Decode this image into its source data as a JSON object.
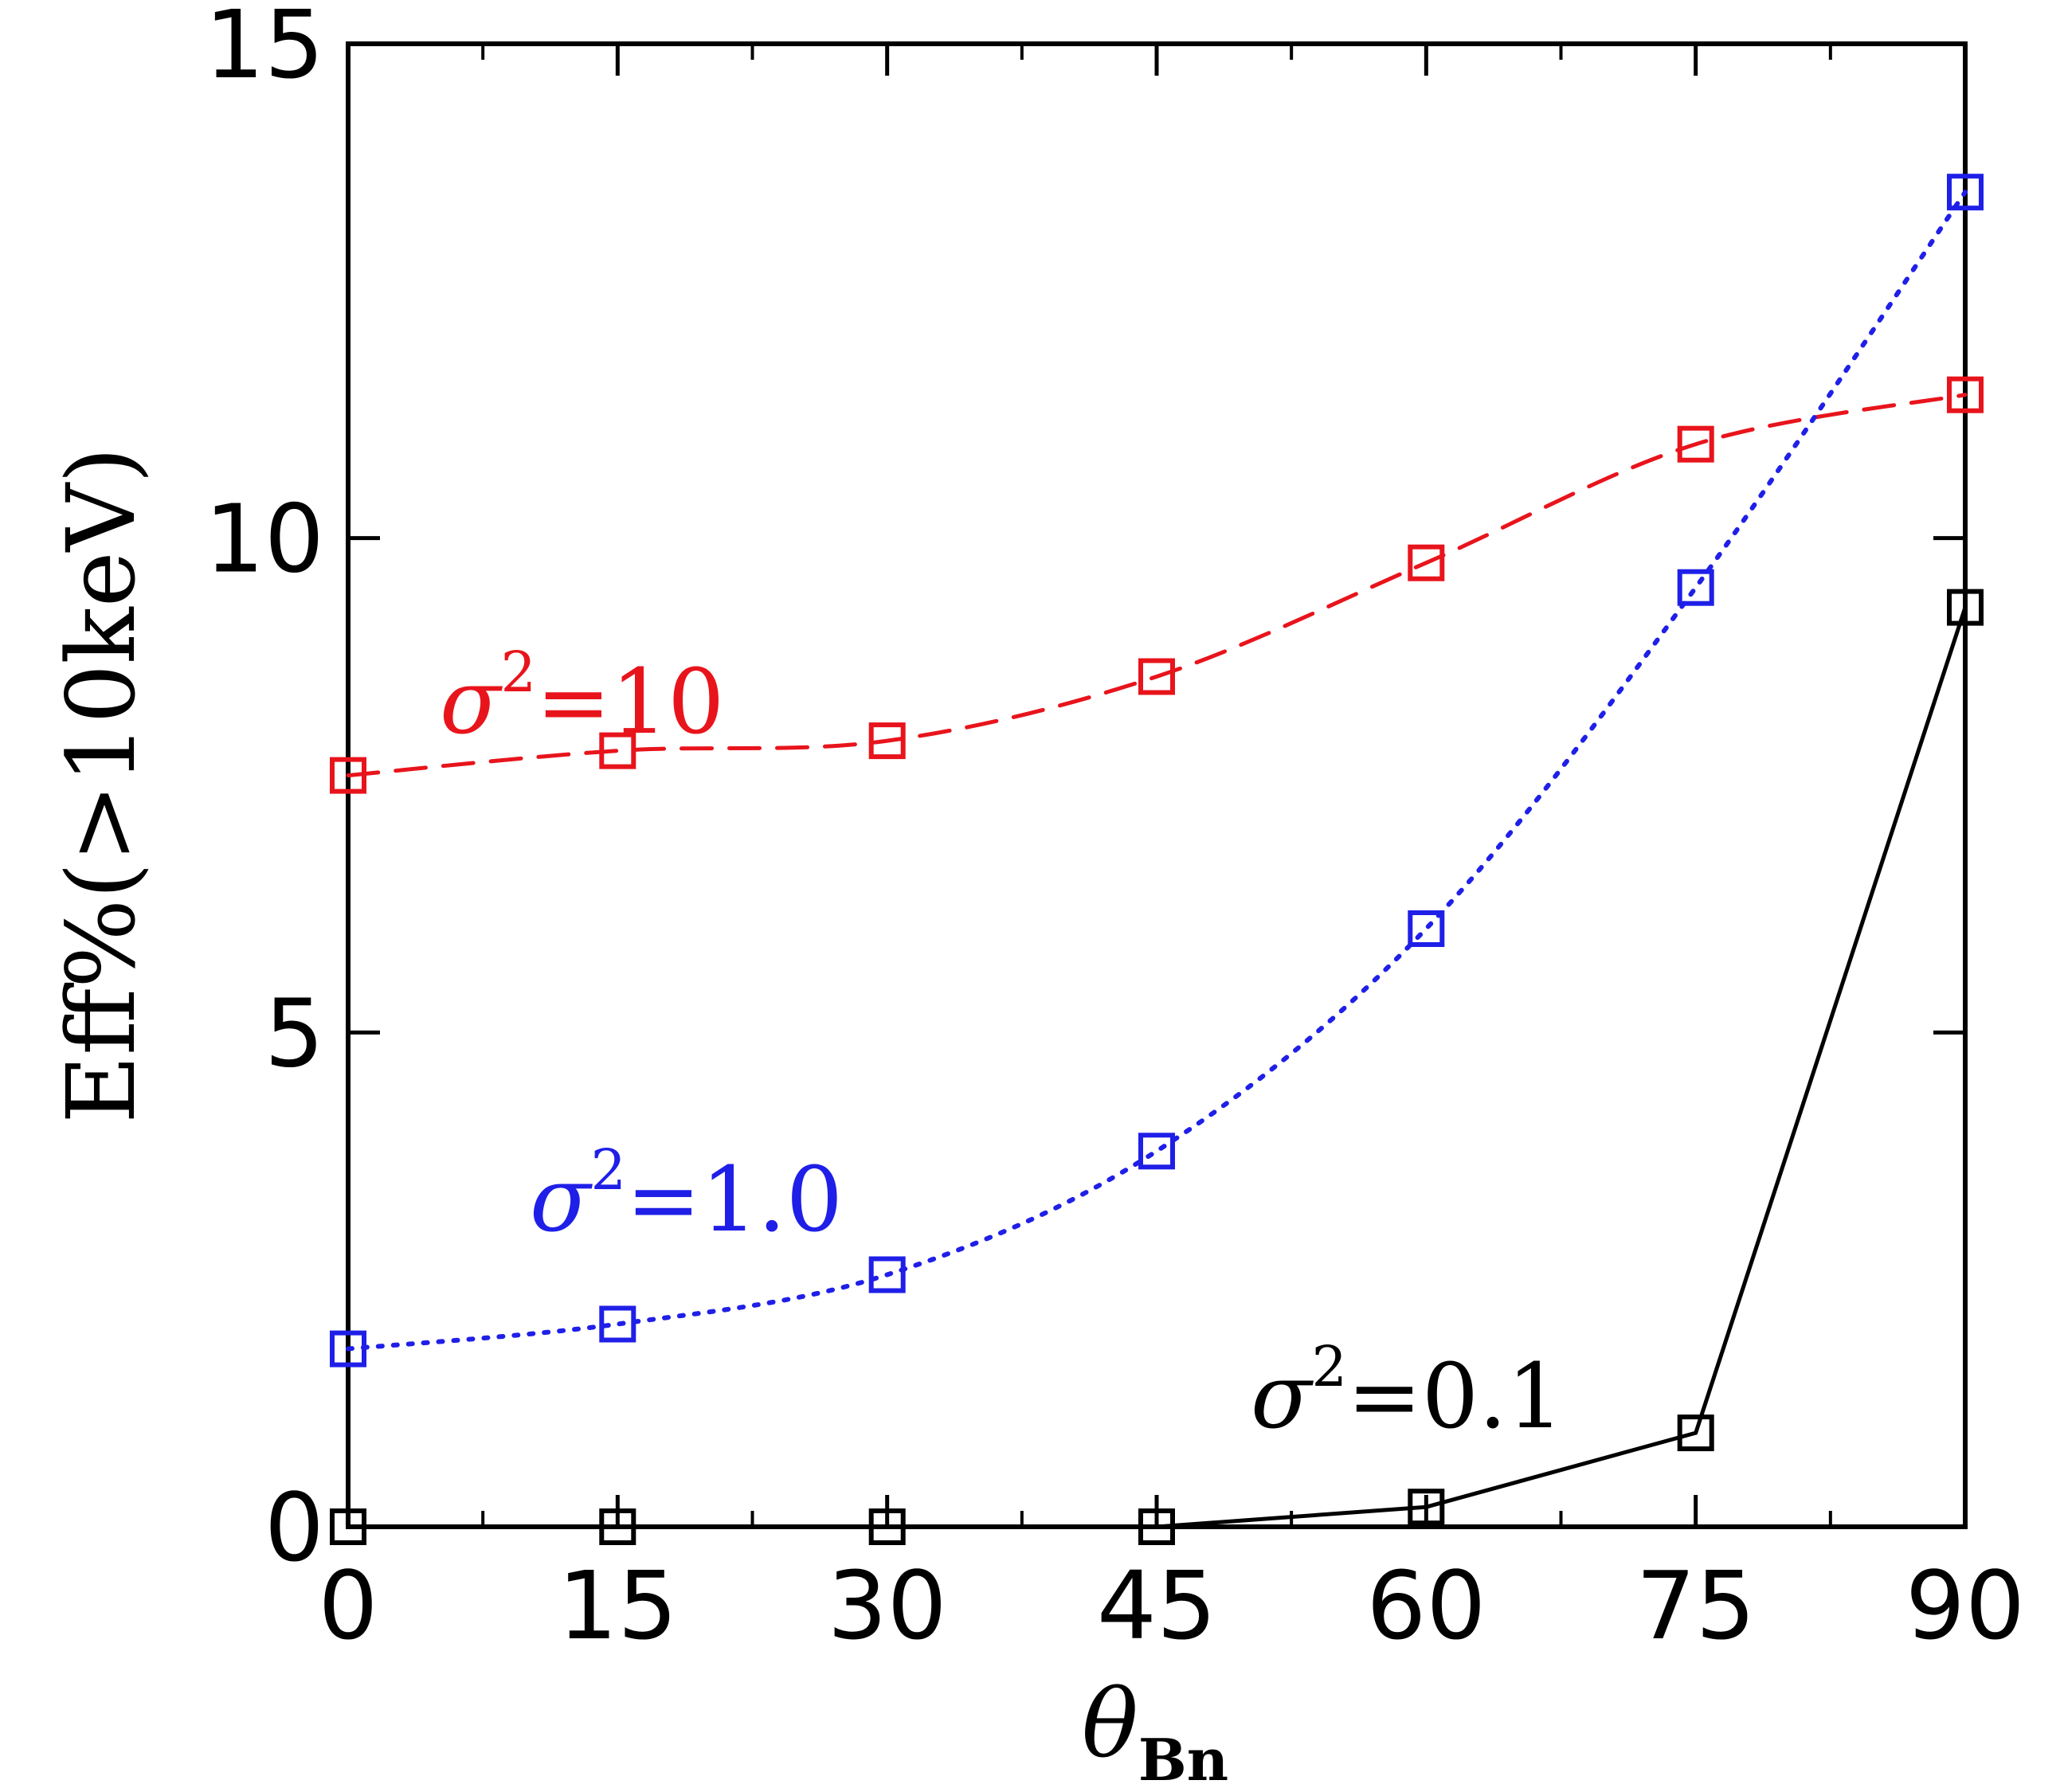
{
  "chart_data": {
    "type": "line",
    "xlabel": "θ",
    "xlabel_sub": "Bn",
    "ylabel": "Eff%(>10keV)",
    "xlim": [
      0,
      90
    ],
    "ylim": [
      0,
      15
    ],
    "xticks": [
      0,
      15,
      30,
      45,
      60,
      75,
      90
    ],
    "yticks": [
      0,
      5,
      10,
      15
    ],
    "grid": false,
    "marker": "square",
    "series": [
      {
        "key": "s10",
        "label_sigma": "σ",
        "label_sup": "2",
        "label_value": "=10",
        "color": "#e8141c",
        "line_style": "dashed",
        "x": [
          0,
          15,
          30,
          45,
          60,
          75,
          90
        ],
        "y": [
          7.6,
          7.85,
          7.95,
          8.6,
          9.75,
          10.95,
          11.45
        ]
      },
      {
        "key": "s1",
        "label_sigma": "σ",
        "label_sup": "2",
        "label_value": "=1.0",
        "color": "#1f1fe8",
        "line_style": "dotted",
        "x": [
          0,
          15,
          30,
          45,
          60,
          75,
          90
        ],
        "y": [
          1.8,
          2.05,
          2.55,
          3.8,
          6.05,
          9.5,
          13.5
        ]
      },
      {
        "key": "s01",
        "label_sigma": "σ",
        "label_sup": "2",
        "label_value": "=0.1",
        "color": "#000000",
        "line_style": "solid",
        "x": [
          0,
          15,
          30,
          45,
          60,
          75,
          90
        ],
        "y": [
          0.0,
          0.0,
          0.0,
          0.0,
          0.2,
          0.95,
          9.3
        ]
      }
    ]
  }
}
